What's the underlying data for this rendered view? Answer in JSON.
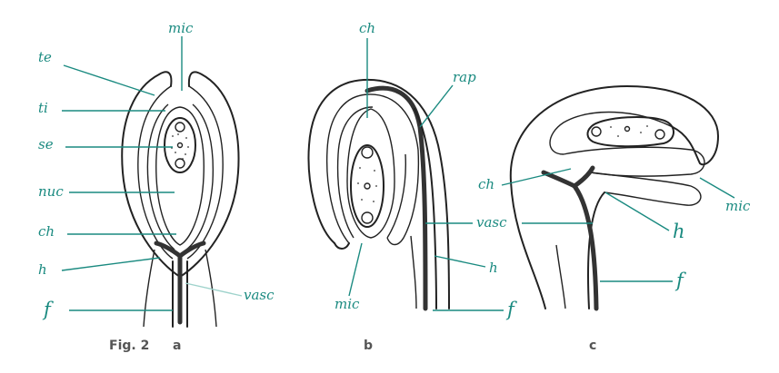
{
  "figure": {
    "caption": "Fig. 2",
    "panels": [
      "a",
      "b",
      "c"
    ]
  },
  "labels": {
    "a": {
      "mic": "mic",
      "te": "te",
      "ti": "ti",
      "se": "se",
      "nuc": "nuc",
      "ch": "ch",
      "h": "h",
      "f": "f",
      "vasc": "vasc"
    },
    "b": {
      "ch": "ch",
      "rap": "rap",
      "vasc": "vasc",
      "h": "h",
      "mic": "mic",
      "f": "f"
    },
    "c": {
      "ch": "ch",
      "mic": "mic",
      "vasc": "vasc",
      "h": "h",
      "f": "f"
    }
  },
  "colors": {
    "label": "#1a8a80",
    "ink": "#222222",
    "caption": "#555555"
  }
}
